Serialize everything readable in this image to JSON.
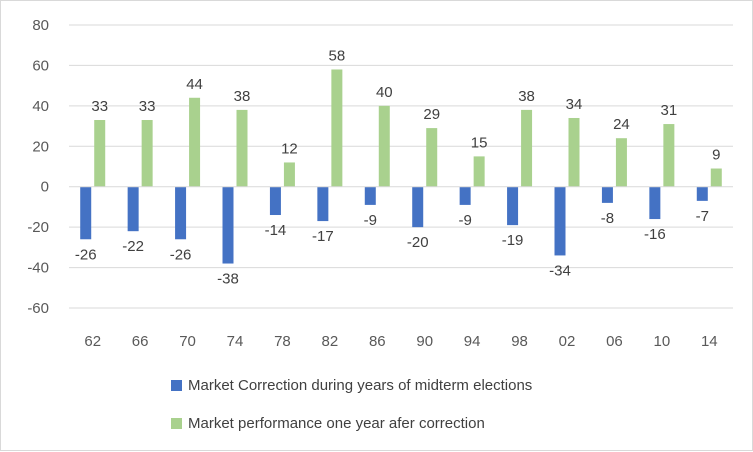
{
  "chart_data": {
    "type": "bar",
    "categories": [
      "62",
      "66",
      "70",
      "74",
      "78",
      "82",
      "86",
      "90",
      "94",
      "98",
      "02",
      "06",
      "10",
      "14"
    ],
    "series": [
      {
        "name": "Market Correction during years of midterm elections",
        "color": "#4472c4",
        "values": [
          -26,
          -22,
          -26,
          -38,
          -14,
          -17,
          -9,
          -20,
          -9,
          -19,
          -34,
          -8,
          -16,
          -7
        ]
      },
      {
        "name": "Market performance one year afer correction",
        "color": "#a9d18e",
        "values": [
          33,
          33,
          44,
          38,
          12,
          58,
          40,
          29,
          15,
          38,
          34,
          24,
          31,
          9
        ]
      }
    ],
    "title": "",
    "xlabel": "",
    "ylabel": "",
    "ylim": [
      -60,
      80
    ],
    "yticks": [
      80,
      60,
      40,
      20,
      0,
      -20,
      -40,
      -60
    ],
    "grid": true,
    "gridline_color": "#d9d9d9",
    "data_labels": true,
    "legend_position": "bottom"
  }
}
